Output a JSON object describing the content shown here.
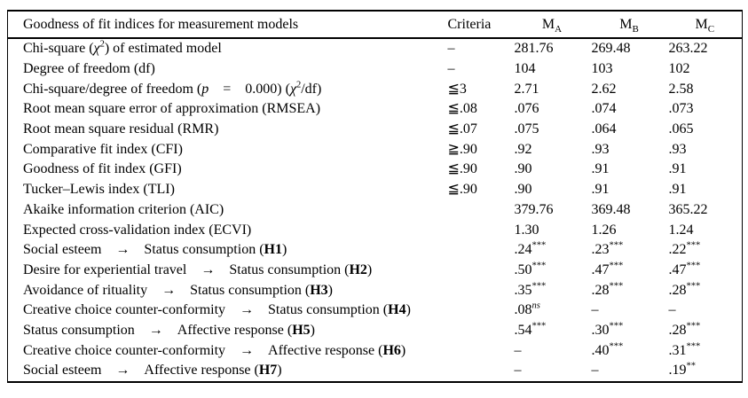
{
  "page": {
    "background": "#ffffff",
    "text_color": "#000000"
  },
  "table": {
    "title_col_header": "Goodness of fit indices for measurement models",
    "criteria_header": "Criteria",
    "model_headers": [
      {
        "base": "M",
        "sub": "A"
      },
      {
        "base": "M",
        "sub": "B"
      },
      {
        "base": "M",
        "sub": "C"
      }
    ],
    "rows": [
      {
        "label": [
          {
            "t": "Chi-square ("
          },
          {
            "t": "χ",
            "i": true
          },
          {
            "t": "2",
            "sup": true
          },
          {
            "t": ") of estimated model"
          }
        ],
        "criteria": [
          {
            "t": "–"
          }
        ],
        "values": [
          [
            {
              "t": "281.76"
            }
          ],
          [
            {
              "t": "269.48"
            }
          ],
          [
            {
              "t": "263.22"
            }
          ]
        ]
      },
      {
        "label": [
          {
            "t": "Degree of freedom (df)"
          }
        ],
        "criteria": [
          {
            "t": "–"
          }
        ],
        "values": [
          [
            {
              "t": "104"
            }
          ],
          [
            {
              "t": "103"
            }
          ],
          [
            {
              "t": "102"
            }
          ]
        ]
      },
      {
        "label": [
          {
            "t": "Chi-square/degree of freedom ("
          },
          {
            "t": "p",
            "i": true
          },
          {
            "t": " = 0.000) ("
          },
          {
            "t": "χ",
            "i": true
          },
          {
            "t": "2",
            "sup": true
          },
          {
            "t": "/df)"
          }
        ],
        "criteria": [
          {
            "t": "≦3"
          }
        ],
        "values": [
          [
            {
              "t": "2.71"
            }
          ],
          [
            {
              "t": "2.62"
            }
          ],
          [
            {
              "t": "2.58"
            }
          ]
        ]
      },
      {
        "label": [
          {
            "t": "Root mean square error of approximation (RMSEA)"
          }
        ],
        "criteria": [
          {
            "t": "≦.08"
          }
        ],
        "values": [
          [
            {
              "t": ".076"
            }
          ],
          [
            {
              "t": ".074"
            }
          ],
          [
            {
              "t": ".073"
            }
          ]
        ]
      },
      {
        "label": [
          {
            "t": "Root mean square residual (RMR)"
          }
        ],
        "criteria": [
          {
            "t": "≦.07"
          }
        ],
        "values": [
          [
            {
              "t": ".075"
            }
          ],
          [
            {
              "t": ".064"
            }
          ],
          [
            {
              "t": ".065"
            }
          ]
        ]
      },
      {
        "label": [
          {
            "t": "Comparative fit index (CFI)"
          }
        ],
        "criteria": [
          {
            "t": "≧.90"
          }
        ],
        "values": [
          [
            {
              "t": ".92"
            }
          ],
          [
            {
              "t": ".93"
            }
          ],
          [
            {
              "t": ".93"
            }
          ]
        ]
      },
      {
        "label": [
          {
            "t": "Goodness of fit index (GFI)"
          }
        ],
        "criteria": [
          {
            "t": "≦.90"
          }
        ],
        "values": [
          [
            {
              "t": ".90"
            }
          ],
          [
            {
              "t": ".91"
            }
          ],
          [
            {
              "t": ".91"
            }
          ]
        ]
      },
      {
        "label": [
          {
            "t": "Tucker–Lewis index (TLI)"
          }
        ],
        "criteria": [
          {
            "t": "≦.90"
          }
        ],
        "values": [
          [
            {
              "t": ".90"
            }
          ],
          [
            {
              "t": ".91"
            }
          ],
          [
            {
              "t": ".91"
            }
          ]
        ]
      },
      {
        "label": [
          {
            "t": "Akaike information criterion (AIC)"
          }
        ],
        "criteria": [],
        "values": [
          [
            {
              "t": "379.76"
            }
          ],
          [
            {
              "t": "369.48"
            }
          ],
          [
            {
              "t": "365.22"
            }
          ]
        ]
      },
      {
        "label": [
          {
            "t": "Expected cross-validation index (ECVI)"
          }
        ],
        "criteria": [],
        "values": [
          [
            {
              "t": "1.30"
            }
          ],
          [
            {
              "t": "1.26"
            }
          ],
          [
            {
              "t": "1.24"
            }
          ]
        ]
      },
      {
        "label": [
          {
            "t": "Social esteem → Status consumption ("
          },
          {
            "t": "H1",
            "b": true
          },
          {
            "t": ")"
          }
        ],
        "criteria": [],
        "values": [
          [
            {
              "t": ".24"
            },
            {
              "t": "***",
              "sup": true
            }
          ],
          [
            {
              "t": ".23"
            },
            {
              "t": "***",
              "sup": true
            }
          ],
          [
            {
              "t": ".22"
            },
            {
              "t": "***",
              "sup": true
            }
          ]
        ]
      },
      {
        "label": [
          {
            "t": "Desire for experiential travel → Status consumption ("
          },
          {
            "t": "H2",
            "b": true
          },
          {
            "t": ")"
          }
        ],
        "criteria": [],
        "values": [
          [
            {
              "t": ".50"
            },
            {
              "t": "***",
              "sup": true
            }
          ],
          [
            {
              "t": ".47"
            },
            {
              "t": "***",
              "sup": true
            }
          ],
          [
            {
              "t": ".47"
            },
            {
              "t": "***",
              "sup": true
            }
          ]
        ]
      },
      {
        "label": [
          {
            "t": "Avoidance of rituality → Status consumption ("
          },
          {
            "t": "H3",
            "b": true
          },
          {
            "t": ")"
          }
        ],
        "criteria": [],
        "values": [
          [
            {
              "t": ".35"
            },
            {
              "t": "***",
              "sup": true
            }
          ],
          [
            {
              "t": ".28"
            },
            {
              "t": "***",
              "sup": true
            }
          ],
          [
            {
              "t": ".28"
            },
            {
              "t": "***",
              "sup": true
            }
          ]
        ]
      },
      {
        "label": [
          {
            "t": "Creative choice counter-conformity → Status consumption ("
          },
          {
            "t": "H4",
            "b": true
          },
          {
            "t": ")"
          }
        ],
        "criteria": [],
        "values": [
          [
            {
              "t": ".08"
            },
            {
              "t": "ns",
              "sup": true,
              "i": true
            }
          ],
          [
            {
              "t": "–"
            }
          ],
          [
            {
              "t": "–"
            }
          ]
        ]
      },
      {
        "label": [
          {
            "t": "Status consumption → Affective response ("
          },
          {
            "t": "H5",
            "b": true
          },
          {
            "t": ")"
          }
        ],
        "criteria": [],
        "values": [
          [
            {
              "t": ".54"
            },
            {
              "t": "***",
              "sup": true
            }
          ],
          [
            {
              "t": ".30"
            },
            {
              "t": "***",
              "sup": true
            }
          ],
          [
            {
              "t": ".28"
            },
            {
              "t": "***",
              "sup": true
            }
          ]
        ]
      },
      {
        "label": [
          {
            "t": "Creative choice counter-conformity → Affective response ("
          },
          {
            "t": "H6",
            "b": true
          },
          {
            "t": ")"
          }
        ],
        "criteria": [],
        "values": [
          [
            {
              "t": "–"
            }
          ],
          [
            {
              "t": ".40"
            },
            {
              "t": "***",
              "sup": true
            }
          ],
          [
            {
              "t": ".31"
            },
            {
              "t": "***",
              "sup": true
            }
          ]
        ]
      },
      {
        "label": [
          {
            "t": "Social esteem → Affective response ("
          },
          {
            "t": "H7",
            "b": true
          },
          {
            "t": ")"
          }
        ],
        "criteria": [],
        "values": [
          [
            {
              "t": "–"
            }
          ],
          [
            {
              "t": "–"
            }
          ],
          [
            {
              "t": ".19"
            },
            {
              "t": "**",
              "sup": true
            }
          ]
        ]
      }
    ]
  }
}
